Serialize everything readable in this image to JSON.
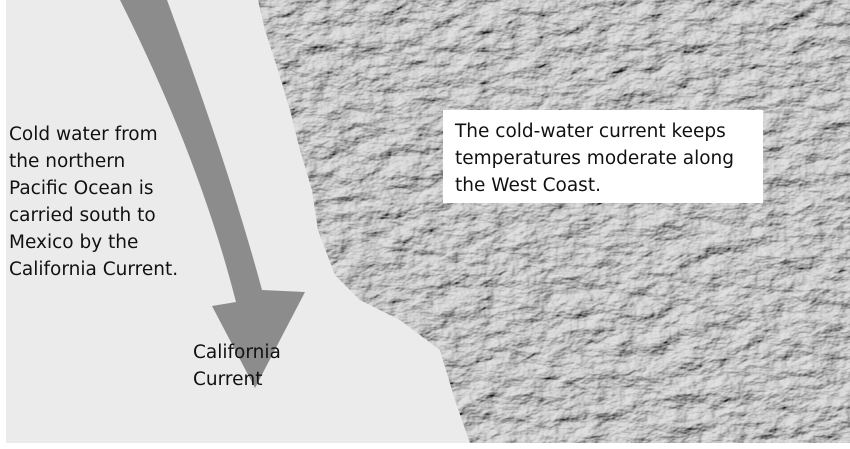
{
  "annotation": {
    "lines": [
      "Cold water from",
      "the northern",
      "Pacific Ocean is",
      "carried south to",
      "Mexico by the",
      "California Current."
    ]
  },
  "callout": {
    "lines": [
      "The cold-water current keeps",
      "temperatures moderate along",
      "the West Coast."
    ]
  },
  "current_label": {
    "lines": [
      "California",
      "Current"
    ]
  }
}
